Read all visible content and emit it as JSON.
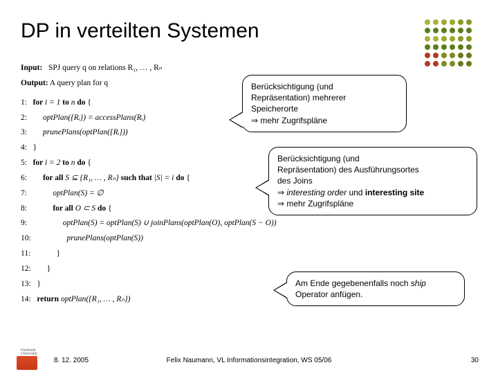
{
  "title": "DP in verteilten Systemen",
  "dot_colors": [
    "#aab23a",
    "#aab23a",
    "#9aa92e",
    "#9aa92e",
    "#8a9a26",
    "#8a9a26",
    "#5b7d1e",
    "#5b7d1e",
    "#5b7d1e",
    "#5b7d1e",
    "#5b7d1e",
    "#5b7d1e",
    "#aab23a",
    "#aab23a",
    "#9aa92e",
    "#9aa92e",
    "#8a9a26",
    "#8a9a26",
    "#5b7d1e",
    "#5b7d1e",
    "#5b7d1e",
    "#5b7d1e",
    "#5b7d1e",
    "#5b7d1e",
    "#ad3d22",
    "#ad3d22",
    "#7b8a24",
    "#7b8a24",
    "#6a7a20",
    "#6a7a20",
    "#ad3d22",
    "#ad3d22",
    "#7b8a24",
    "#7b8a24",
    "#6a7a20",
    "#6a7a20"
  ],
  "algorithm": {
    "l0a": "Input:",
    "l0b": "   SPJ query q on relations R₁, … , Rₙ",
    "l1a": "Output:",
    "l1b": " A query plan for q",
    "n1": "1:",
    "r1a": "   for ",
    "r1b": "i = 1 ",
    "r1c": "to ",
    "r1d": "n ",
    "r1e": "do ",
    "r1f": "{",
    "n2": "2:",
    "r2": "        optPlan({Rᵢ}) = accessPlans(Rᵢ)",
    "n3": "3:",
    "r3": "        prunePlans(optPlan({Rᵢ}))",
    "n4": "4:",
    "r4": "   }",
    "n5": "5:",
    "r5a": "   for ",
    "r5b": "i = 2 ",
    "r5c": "to ",
    "r5d": "n ",
    "r5e": "do ",
    "r5f": "{",
    "n6": "6:",
    "r6a": "        for all ",
    "r6b": "S ⊆ {R₁, … , Rₙ} ",
    "r6c": "such that ",
    "r6d": "|S| = i ",
    "r6e": "do ",
    "r6f": "{",
    "n7": "7:",
    "r7": "             optPlan(S) = ∅",
    "n8": "8:",
    "r8a": "             for all ",
    "r8b": "O ⊂ S ",
    "r8c": "do ",
    "r8d": "{",
    "n9": "9:",
    "r9": "                  optPlan(S) = optPlan(S) ∪ joinPlans(optPlan(O), optPlan(S − O))",
    "n10": "10:",
    "r10": "                  prunePlans(optPlan(S))",
    "n11": "11:",
    "r11": "             }",
    "n12": "12:",
    "r12": "        }",
    "n13": "13:",
    "r13": "   }",
    "n14": "14:",
    "r14a": "   return ",
    "r14b": "optPlan({R₁, … , Rₙ})"
  },
  "callout1": {
    "line1": "Berücksichtigung (und",
    "line2": "Repräsentation) mehrerer",
    "line3": "Speicherorte",
    "line4": "⇒ mehr Zugrifspläne"
  },
  "callout2": {
    "line1": "Berücksichtigung (und",
    "line2": "Repräsentation) des Ausführungsortes",
    "line3": "des Joins",
    "line4a": "⇒ ",
    "line4b": "interesting order",
    "line4c": " und ",
    "line4d": "interesting site",
    "line5": "⇒ mehr Zugrifspläne"
  },
  "callout3": {
    "line1a": "Am Ende gegebenenfalls noch ",
    "line1b": "ship",
    "line1c": " Operator anfügen."
  },
  "footer": {
    "date": "8. 12. 2005",
    "center": "Felix Naumann, VL Informationsintegration, WS 05/06",
    "page": "30"
  }
}
